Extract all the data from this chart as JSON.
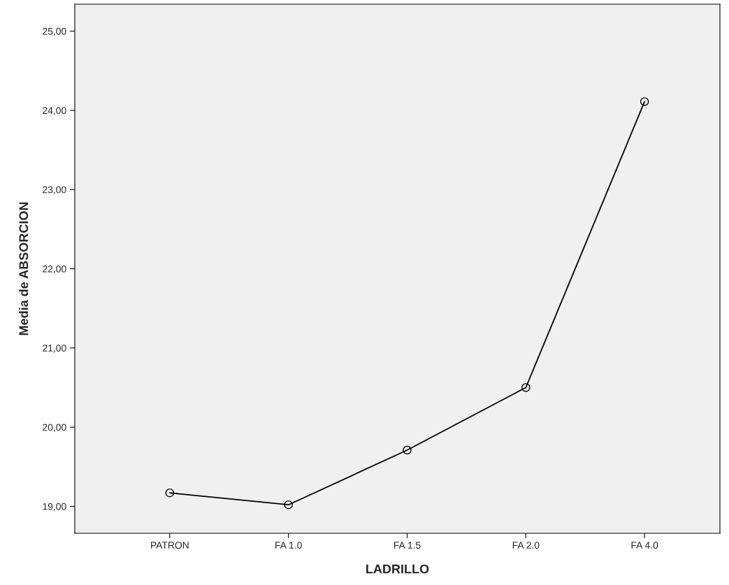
{
  "chart_data": {
    "type": "line",
    "xlabel": "LADRILLO",
    "ylabel": "Media de ABSORCION",
    "categories": [
      "PATRON",
      "FA 1.0",
      "FA 1.5",
      "FA 2.0",
      "FA 4.0"
    ],
    "series": [
      {
        "color": "#000000",
        "values": [
          19.17,
          19.02,
          19.71,
          20.5,
          24.11
        ]
      }
    ],
    "ylim": [
      18.66,
      25.34
    ],
    "yticks": [
      {
        "value": 19,
        "label": "19,00"
      },
      {
        "value": 20,
        "label": "20,00"
      },
      {
        "value": 21,
        "label": "21,00"
      },
      {
        "value": 22,
        "label": "22,00"
      },
      {
        "value": 23,
        "label": "23,00"
      },
      {
        "value": 24,
        "label": "24,00"
      },
      {
        "value": 25,
        "label": "25,00"
      }
    ],
    "marker": "circle",
    "grid": false
  }
}
